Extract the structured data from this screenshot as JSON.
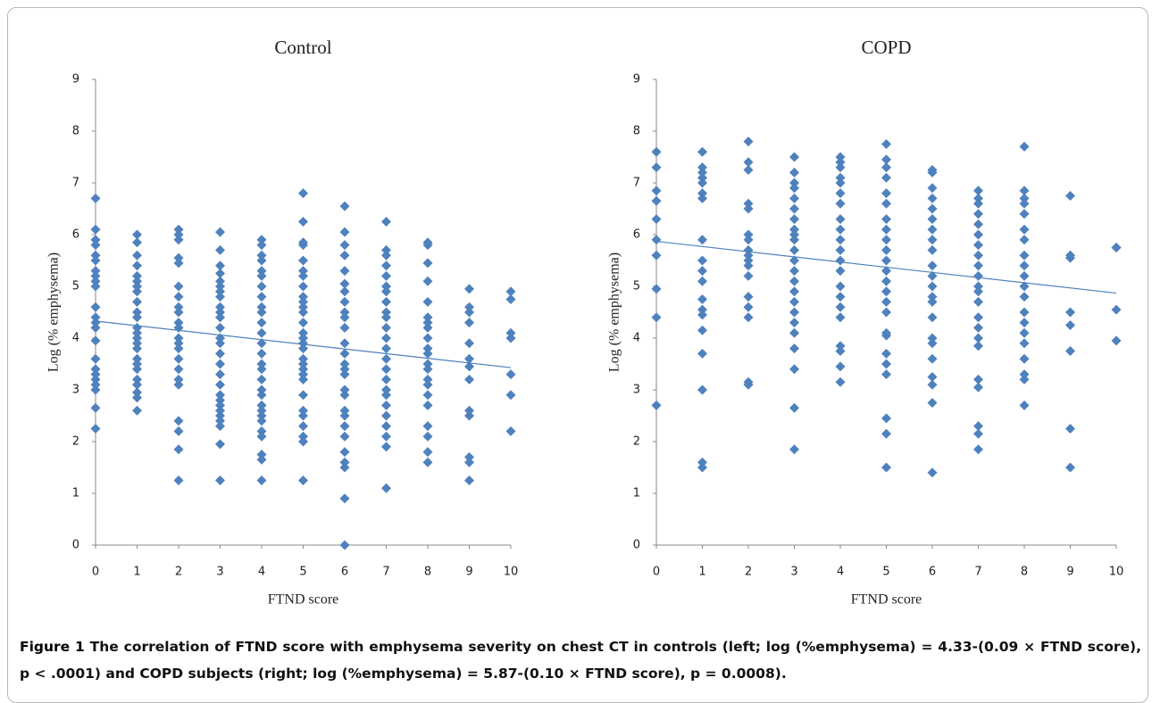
{
  "chart_data": [
    {
      "type": "scatter",
      "title": "Control",
      "xlabel": "FTND score",
      "ylabel": "Log (% emphysema)",
      "color": "#4f81bd",
      "xlim": [
        0,
        10
      ],
      "ylim": [
        0,
        9
      ],
      "xticks": [
        0,
        1,
        2,
        3,
        4,
        5,
        6,
        7,
        8,
        9,
        10
      ],
      "yticks": [
        0,
        1,
        2,
        3,
        4,
        5,
        6,
        7,
        8,
        9
      ],
      "trendline": {
        "intercept": 4.33,
        "slope": -0.09,
        "color": "#4f81bd"
      },
      "x": [
        0,
        0,
        0,
        0,
        0,
        0,
        0,
        0,
        0,
        0,
        0,
        0,
        0,
        0,
        0,
        0,
        0,
        0,
        0,
        0,
        0,
        0,
        0,
        1,
        1,
        1,
        1,
        1,
        1,
        1,
        1,
        1,
        1,
        1,
        1,
        1,
        1,
        1,
        1,
        1,
        1,
        1,
        1,
        1,
        1,
        1,
        1,
        2,
        2,
        2,
        2,
        2,
        2,
        2,
        2,
        2,
        2,
        2,
        2,
        2,
        2,
        2,
        2,
        2,
        2,
        2,
        2,
        2,
        2,
        3,
        3,
        3,
        3,
        3,
        3,
        3,
        3,
        3,
        3,
        3,
        3,
        3,
        3,
        3,
        3,
        3,
        3,
        3,
        3,
        3,
        3,
        3,
        3,
        3,
        3,
        3,
        4,
        4,
        4,
        4,
        4,
        4,
        4,
        4,
        4,
        4,
        4,
        4,
        4,
        4,
        4,
        4,
        4,
        4,
        4,
        4,
        4,
        4,
        4,
        4,
        4,
        4,
        4,
        4,
        5,
        5,
        5,
        5,
        5,
        5,
        5,
        5,
        5,
        5,
        5,
        5,
        5,
        5,
        5,
        5,
        5,
        5,
        5,
        5,
        5,
        5,
        5,
        5,
        5,
        5,
        5,
        5,
        5,
        6,
        6,
        6,
        6,
        6,
        6,
        6,
        6,
        6,
        6,
        6,
        6,
        6,
        6,
        6,
        6,
        6,
        6,
        6,
        6,
        6,
        6,
        6,
        6,
        6,
        6,
        6,
        7,
        7,
        7,
        7,
        7,
        7,
        7,
        7,
        7,
        7,
        7,
        7,
        7,
        7,
        7,
        7,
        7,
        7,
        7,
        7,
        7,
        7,
        7,
        7,
        8,
        8,
        8,
        8,
        8,
        8,
        8,
        8,
        8,
        8,
        8,
        8,
        8,
        8,
        8,
        8,
        8,
        8,
        8,
        8,
        8,
        9,
        9,
        9,
        9,
        9,
        9,
        9,
        9,
        9,
        9,
        9,
        9,
        9,
        10,
        10,
        10,
        10,
        10,
        10,
        10
      ],
      "values": [
        6.7,
        6.1,
        5.9,
        5.8,
        5.6,
        5.5,
        5.3,
        5.2,
        5.1,
        5.0,
        4.6,
        4.4,
        4.3,
        4.2,
        3.95,
        3.6,
        3.4,
        3.3,
        3.2,
        3.1,
        3.0,
        2.65,
        2.25,
        6.0,
        5.85,
        5.6,
        5.4,
        5.2,
        5.1,
        5.0,
        4.9,
        4.7,
        4.5,
        4.4,
        4.2,
        4.1,
        4.0,
        3.9,
        3.8,
        3.6,
        3.5,
        3.4,
        3.2,
        3.1,
        2.95,
        2.85,
        2.6,
        6.1,
        6.0,
        5.9,
        5.55,
        5.45,
        5.0,
        4.8,
        4.6,
        4.5,
        4.3,
        4.2,
        4.0,
        3.9,
        3.8,
        3.6,
        3.4,
        3.2,
        3.1,
        2.4,
        2.2,
        1.85,
        1.25,
        6.05,
        5.7,
        5.4,
        5.25,
        5.1,
        5.0,
        4.9,
        4.8,
        4.6,
        4.5,
        4.4,
        4.2,
        4.0,
        3.9,
        3.7,
        3.5,
        3.3,
        3.1,
        2.9,
        2.8,
        2.7,
        2.6,
        2.5,
        2.4,
        2.3,
        1.95,
        1.25,
        5.9,
        5.8,
        5.6,
        5.5,
        5.3,
        5.2,
        5.0,
        4.8,
        4.6,
        4.5,
        4.3,
        4.1,
        3.9,
        3.7,
        3.5,
        3.4,
        3.2,
        3.0,
        2.9,
        2.7,
        2.6,
        2.5,
        2.4,
        2.2,
        2.1,
        1.75,
        1.65,
        1.25,
        6.8,
        6.25,
        5.85,
        5.8,
        5.5,
        5.3,
        5.2,
        5.0,
        4.8,
        4.7,
        4.6,
        4.5,
        4.3,
        4.1,
        4.0,
        3.9,
        3.8,
        3.6,
        3.5,
        3.4,
        3.3,
        3.2,
        2.9,
        2.6,
        2.5,
        2.3,
        2.1,
        2.0,
        1.25,
        6.55,
        6.05,
        5.8,
        5.6,
        5.3,
        5.05,
        4.9,
        4.7,
        4.5,
        4.4,
        4.2,
        3.9,
        3.7,
        3.5,
        3.4,
        3.3,
        3.0,
        2.9,
        2.6,
        2.5,
        2.3,
        2.1,
        1.8,
        1.6,
        1.5,
        0.9,
        0,
        6.25,
        5.7,
        5.6,
        5.4,
        5.2,
        5.0,
        4.9,
        4.7,
        4.5,
        4.4,
        4.2,
        4.0,
        3.8,
        3.6,
        3.4,
        3.2,
        3.0,
        2.9,
        2.7,
        2.5,
        2.3,
        2.1,
        1.9,
        1.1,
        5.85,
        5.8,
        5.45,
        5.1,
        4.7,
        4.4,
        4.3,
        4.2,
        4.0,
        3.8,
        3.7,
        3.5,
        3.4,
        3.2,
        3.1,
        2.9,
        2.7,
        2.3,
        2.1,
        1.8,
        1.6,
        4.95,
        4.6,
        4.5,
        4.3,
        3.9,
        3.6,
        3.45,
        3.2,
        2.6,
        2.5,
        1.7,
        1.6,
        1.25,
        4.9,
        4.75,
        4.1,
        4.0,
        3.3,
        2.9,
        2.2
      ]
    },
    {
      "type": "scatter",
      "title": "COPD",
      "xlabel": "FTND score",
      "ylabel": "Log (% emphysema)",
      "color": "#4f81bd",
      "xlim": [
        0,
        10
      ],
      "ylim": [
        0,
        9
      ],
      "xticks": [
        0,
        1,
        2,
        3,
        4,
        5,
        6,
        7,
        8,
        9,
        10
      ],
      "yticks": [
        0,
        1,
        2,
        3,
        4,
        5,
        6,
        7,
        8,
        9
      ],
      "trendline": {
        "intercept": 5.87,
        "slope": -0.1,
        "color": "#4f81bd"
      },
      "x": [
        0,
        0,
        0,
        0,
        0,
        0,
        0,
        0,
        0,
        0,
        1,
        1,
        1,
        1,
        1,
        1,
        1,
        1,
        1,
        1,
        1,
        1,
        1,
        1,
        1,
        1,
        1,
        1,
        1,
        2,
        2,
        2,
        2,
        2,
        2,
        2,
        2,
        2,
        2,
        2,
        2,
        2,
        2,
        2,
        2,
        2,
        3,
        3,
        3,
        3,
        3,
        3,
        3,
        3,
        3,
        3,
        3,
        3,
        3,
        3,
        3,
        3,
        3,
        3,
        3,
        3,
        3,
        3,
        3,
        4,
        4,
        4,
        4,
        4,
        4,
        4,
        4,
        4,
        4,
        4,
        4,
        4,
        4,
        4,
        4,
        4,
        4,
        4,
        4,
        4,
        5,
        5,
        5,
        5,
        5,
        5,
        5,
        5,
        5,
        5,
        5,
        5,
        5,
        5,
        5,
        5,
        5,
        5,
        5,
        5,
        5,
        5,
        5,
        5,
        6,
        6,
        6,
        6,
        6,
        6,
        6,
        6,
        6,
        6,
        6,
        6,
        6,
        6,
        6,
        6,
        6,
        6,
        6,
        6,
        6,
        6,
        7,
        7,
        7,
        7,
        7,
        7,
        7,
        7,
        7,
        7,
        7,
        7,
        7,
        7,
        7,
        7,
        7,
        7,
        7,
        7,
        7,
        7,
        8,
        8,
        8,
        8,
        8,
        8,
        8,
        8,
        8,
        8,
        8,
        8,
        8,
        8,
        8,
        8,
        8,
        8,
        8,
        8,
        9,
        9,
        9,
        9,
        9,
        9,
        9,
        9,
        10,
        10,
        10,
        10
      ],
      "values": [
        7.6,
        7.3,
        6.85,
        6.65,
        6.3,
        5.9,
        5.6,
        4.95,
        4.4,
        2.7,
        7.6,
        7.3,
        7.2,
        7.1,
        7.0,
        6.8,
        6.7,
        5.9,
        5.5,
        5.3,
        5.1,
        4.75,
        4.55,
        4.45,
        4.15,
        3.7,
        3.0,
        1.6,
        1.5,
        7.8,
        7.4,
        7.25,
        6.6,
        6.5,
        6.0,
        5.9,
        5.7,
        5.6,
        5.5,
        5.4,
        5.2,
        4.8,
        4.6,
        4.4,
        3.15,
        3.1,
        7.5,
        7.2,
        7.0,
        6.9,
        6.7,
        6.5,
        6.3,
        6.1,
        6.0,
        5.9,
        5.7,
        5.5,
        5.3,
        5.1,
        4.9,
        4.7,
        4.5,
        4.3,
        4.1,
        3.8,
        3.4,
        2.65,
        1.85,
        7.5,
        7.4,
        7.3,
        7.1,
        7.0,
        6.8,
        6.6,
        6.3,
        6.1,
        5.9,
        5.7,
        5.5,
        5.3,
        5.0,
        4.8,
        4.6,
        4.4,
        3.85,
        3.75,
        3.45,
        3.15,
        7.75,
        7.45,
        7.3,
        7.1,
        6.8,
        6.6,
        6.3,
        6.1,
        5.9,
        5.7,
        5.5,
        5.3,
        5.1,
        4.9,
        4.7,
        4.5,
        4.1,
        4.05,
        3.7,
        3.5,
        3.3,
        2.45,
        2.15,
        1.5,
        7.25,
        7.2,
        6.9,
        6.7,
        6.5,
        6.3,
        6.1,
        5.9,
        5.7,
        5.4,
        5.2,
        5.0,
        4.8,
        4.7,
        4.4,
        4.0,
        3.9,
        3.6,
        3.25,
        3.1,
        2.75,
        1.4,
        6.85,
        6.7,
        6.6,
        6.4,
        6.2,
        6.0,
        5.8,
        5.6,
        5.4,
        5.2,
        5.0,
        4.9,
        4.7,
        4.4,
        4.2,
        4.0,
        3.85,
        3.2,
        3.05,
        2.3,
        2.15,
        1.85,
        7.7,
        6.85,
        6.7,
        6.6,
        6.4,
        6.1,
        5.9,
        5.6,
        5.4,
        5.2,
        5.0,
        4.8,
        4.5,
        4.3,
        4.1,
        3.9,
        3.6,
        3.3,
        3.2,
        2.7,
        6.75,
        5.6,
        5.55,
        4.5,
        4.25,
        3.75,
        2.25,
        1.5,
        5.75,
        5.75,
        4.55,
        3.95
      ]
    }
  ],
  "caption": {
    "label": "Figure 1",
    "text": "The correlation of FTND score with emphysema severity on chest CT in controls (left; log (%emphysema) = 4.33-(0.09 × FTND score), p < .0001) and COPD subjects (right; log (%emphysema) = 5.87-(0.10 × FTND score), p = 0.0008)."
  }
}
